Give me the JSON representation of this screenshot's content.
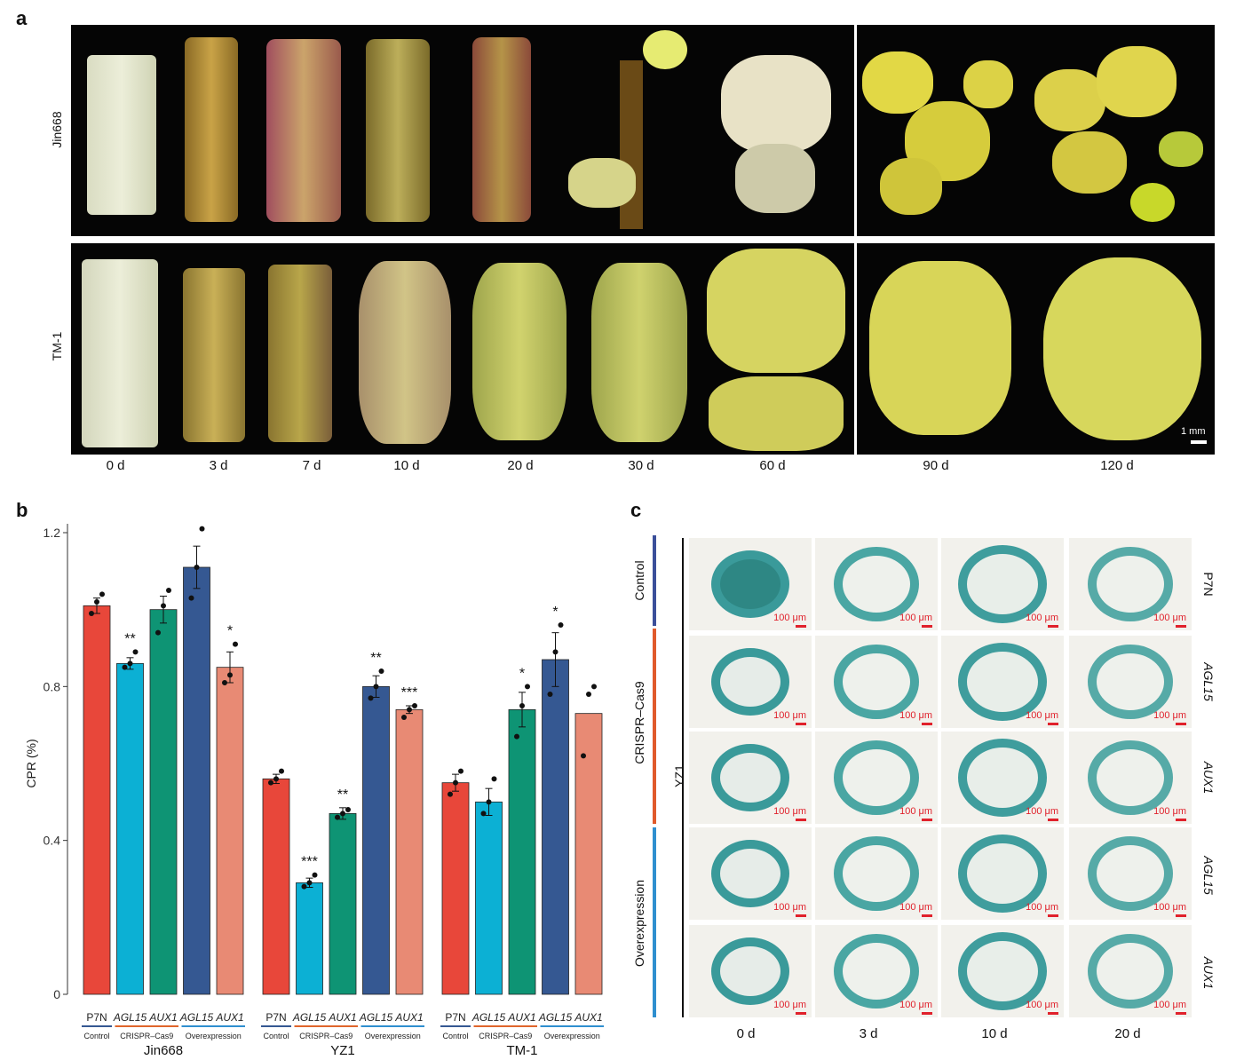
{
  "panel_a": {
    "letter": "a",
    "rows": [
      {
        "label": "Jin668"
      },
      {
        "label": "TM-1"
      }
    ],
    "days": [
      "0 d",
      "3 d",
      "7 d",
      "10 d",
      "20 d",
      "30 d",
      "60 d",
      "90 d",
      "120 d"
    ],
    "scale_label": "1 mm"
  },
  "panel_b": {
    "letter": "b"
  },
  "panel_c": {
    "letter": "c",
    "strain": "YZ1",
    "groups": [
      "Control",
      "CRISPR–Cas9",
      "Overexpression"
    ],
    "row_labels": [
      "P7N",
      "AGL15",
      "AUX1",
      "AGL15",
      "AUX1"
    ],
    "days": [
      "0 d",
      "3 d",
      "10 d",
      "20 d"
    ],
    "scale_label": "100 μm",
    "group_colors": [
      "#3b4f9a",
      "#e05a2b",
      "#2f8fcf"
    ]
  },
  "chart_data": {
    "type": "bar",
    "ylabel": "CPR (%)",
    "ylim": [
      0,
      1.2
    ],
    "yticks": [
      0,
      0.4,
      0.8,
      1.2
    ],
    "ytick_labels": [
      "0",
      "0.4",
      "0.8",
      "1.2"
    ],
    "bar_labels": [
      "P7N",
      "AGL15",
      "AUX1",
      "AGL15",
      "AUX1"
    ],
    "bar_label_italic": [
      false,
      true,
      true,
      true,
      true
    ],
    "bar_colors": [
      "#e8473a",
      "#0cb0d4",
      "#0e9474",
      "#355892",
      "#e88a74"
    ],
    "sub_groups": [
      {
        "name": "Control",
        "bars": [
          0,
          0
        ],
        "color": "#355892"
      },
      {
        "name": "CRISPR–Cas9",
        "bars": [
          1,
          2
        ],
        "color": "#e0662c"
      },
      {
        "name": "Overexpression",
        "bars": [
          3,
          4
        ],
        "color": "#2f8fcf"
      }
    ],
    "groups": [
      {
        "name": "Jin668",
        "values": [
          1.01,
          0.86,
          1.0,
          1.11,
          0.85
        ],
        "errors": [
          0.02,
          0.015,
          0.035,
          0.055,
          0.04
        ],
        "points": [
          [
            0.99,
            1.02,
            1.04
          ],
          [
            0.85,
            0.86,
            0.89
          ],
          [
            0.94,
            1.01,
            1.05
          ],
          [
            1.03,
            1.11,
            1.21
          ],
          [
            0.81,
            0.83,
            0.91
          ]
        ],
        "sig": [
          "",
          "**",
          "",
          "",
          "*"
        ]
      },
      {
        "name": "YZ1",
        "values": [
          0.56,
          0.29,
          0.47,
          0.8,
          0.74
        ],
        "errors": [
          0.012,
          0.012,
          0.015,
          0.028,
          0.01
        ],
        "points": [
          [
            0.55,
            0.56,
            0.58
          ],
          [
            0.28,
            0.29,
            0.31
          ],
          [
            0.46,
            0.47,
            0.48
          ],
          [
            0.77,
            0.8,
            0.84
          ],
          [
            0.72,
            0.74,
            0.75
          ]
        ],
        "sig": [
          "",
          "***",
          "**",
          "**",
          "***"
        ]
      },
      {
        "name": "TM-1",
        "values": [
          0.55,
          0.5,
          0.74,
          0.87,
          0.73
        ],
        "errors": [
          0.022,
          0.035,
          0.045,
          0.07,
          0.0
        ],
        "points": [
          [
            0.52,
            0.55,
            0.58
          ],
          [
            0.47,
            0.5,
            0.56
          ],
          [
            0.67,
            0.75,
            0.8
          ],
          [
            0.78,
            0.89,
            0.96
          ],
          [
            0.62,
            0.78,
            0.8
          ]
        ],
        "sig": [
          "",
          "",
          "*",
          "*",
          ""
        ]
      }
    ]
  }
}
